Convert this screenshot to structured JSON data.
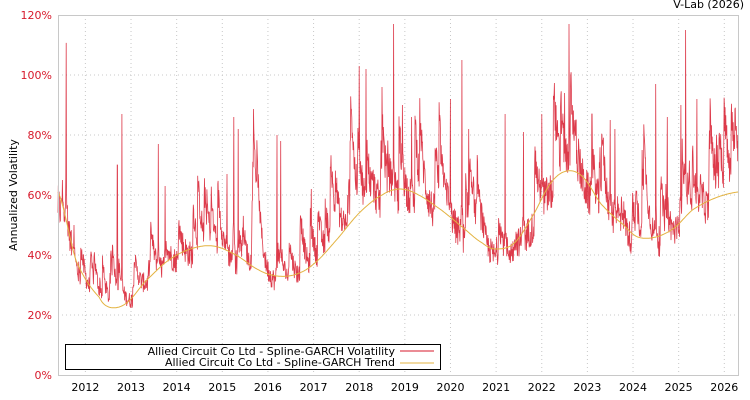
{
  "credit": "V-Lab (2026)",
  "colors": {
    "volatility": "#d7192b",
    "trend": "#e3b341",
    "axis_tick_labels_y": "#d7192b",
    "axis_tick_labels_x": "#000000",
    "grid": "#c8c8c8",
    "frame": "#c8c8c8"
  },
  "chart_data": {
    "type": "line",
    "title": "",
    "xlabel": "",
    "ylabel": "Annualized Volatility",
    "ylim": [
      0,
      120
    ],
    "xlim": [
      2011.4,
      2026.3
    ],
    "yticks": [
      "0%",
      "20%",
      "40%",
      "60%",
      "80%",
      "100%",
      "120%"
    ],
    "ytick_values": [
      0,
      20,
      40,
      60,
      80,
      100,
      120
    ],
    "xticks": [
      "2012",
      "2013",
      "2014",
      "2015",
      "2016",
      "2017",
      "2018",
      "2019",
      "2020",
      "2021",
      "2022",
      "2023",
      "2024",
      "2025",
      "2026"
    ],
    "grid": true,
    "legend_position": "lower-left inside",
    "legend": [
      "Allied Circuit Co Ltd - Spline-GARCH Volatility",
      "Allied Circuit Co Ltd - Spline-GARCH Trend"
    ],
    "series": [
      {
        "name": "Allied Circuit Co Ltd - Spline-GARCH Trend",
        "x": [
          2011.4,
          2011.8,
          2012.3,
          2012.55,
          2012.9,
          2013.3,
          2013.8,
          2014.3,
          2014.8,
          2015.3,
          2015.8,
          2016.2,
          2016.6,
          2017.0,
          2017.5,
          2018.0,
          2018.5,
          2018.9,
          2019.3,
          2019.8,
          2020.2,
          2020.7,
          2021.0,
          2021.4,
          2021.8,
          2022.2,
          2022.55,
          2022.9,
          2023.3,
          2023.8,
          2024.1,
          2024.5,
          2024.9,
          2025.3,
          2025.8,
          2026.3
        ],
        "values": [
          61,
          38,
          26,
          22.5,
          24,
          31,
          38,
          42,
          43,
          40,
          35,
          33,
          33.5,
          37,
          45,
          54,
          60,
          62,
          60,
          55,
          50,
          44,
          42,
          44,
          53,
          64,
          68,
          66,
          57,
          50,
          46,
          46,
          49,
          55,
          59,
          61
        ]
      },
      {
        "name": "Allied Circuit Co Ltd - Spline-GARCH Volatility",
        "description": "daily series fluctuating around trend; notable spikes listed",
        "spikes": [
          {
            "x": 2011.58,
            "y": 110.7
          },
          {
            "x": 2011.5,
            "y": 65
          },
          {
            "x": 2011.75,
            "y": 50
          },
          {
            "x": 2012.7,
            "y": 70
          },
          {
            "x": 2012.8,
            "y": 87
          },
          {
            "x": 2013.6,
            "y": 77
          },
          {
            "x": 2013.75,
            "y": 63
          },
          {
            "x": 2014.8,
            "y": 55
          },
          {
            "x": 2015.1,
            "y": 67
          },
          {
            "x": 2015.25,
            "y": 86
          },
          {
            "x": 2015.35,
            "y": 82
          },
          {
            "x": 2016.2,
            "y": 80
          },
          {
            "x": 2016.28,
            "y": 78
          },
          {
            "x": 2016.95,
            "y": 62
          },
          {
            "x": 2017.75,
            "y": 60
          },
          {
            "x": 2018.0,
            "y": 103
          },
          {
            "x": 2018.15,
            "y": 102
          },
          {
            "x": 2018.5,
            "y": 96
          },
          {
            "x": 2018.75,
            "y": 117
          },
          {
            "x": 2018.95,
            "y": 90
          },
          {
            "x": 2019.15,
            "y": 86
          },
          {
            "x": 2020.0,
            "y": 92
          },
          {
            "x": 2020.25,
            "y": 105
          },
          {
            "x": 2020.4,
            "y": 82
          },
          {
            "x": 2021.2,
            "y": 87
          },
          {
            "x": 2021.6,
            "y": 81
          },
          {
            "x": 2022.0,
            "y": 87
          },
          {
            "x": 2022.6,
            "y": 117
          },
          {
            "x": 2022.5,
            "y": 94
          },
          {
            "x": 2022.75,
            "y": 85
          },
          {
            "x": 2023.1,
            "y": 87
          },
          {
            "x": 2023.5,
            "y": 85
          },
          {
            "x": 2023.6,
            "y": 82
          },
          {
            "x": 2024.2,
            "y": 75
          },
          {
            "x": 2024.5,
            "y": 97
          },
          {
            "x": 2024.75,
            "y": 86
          },
          {
            "x": 2025.15,
            "y": 115
          },
          {
            "x": 2025.05,
            "y": 90
          },
          {
            "x": 2025.4,
            "y": 92
          },
          {
            "x": 2025.7,
            "y": 82
          },
          {
            "x": 2026.15,
            "y": 87
          }
        ]
      }
    ]
  }
}
